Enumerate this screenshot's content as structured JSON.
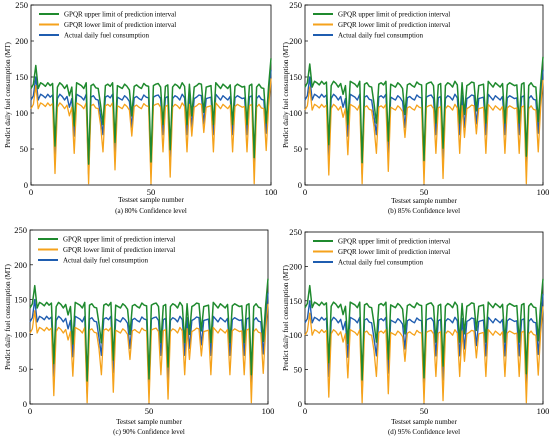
{
  "chart_data": [
    {
      "type": "line",
      "caption": "(a) 80% Confidence level",
      "xlabel": "Testset sample number",
      "ylabel": "Predict daily fuel consumption (MT)",
      "xlim": [
        0,
        100
      ],
      "ylim": [
        0,
        250
      ],
      "xticks": [
        "0",
        "50",
        "100"
      ],
      "yticks": [
        "0",
        "50",
        "100",
        "150",
        "200",
        "250"
      ],
      "legend_position": "top-left",
      "series": [
        {
          "name": "GPQR upper limit of prediction interval",
          "color": "#1f8a2e",
          "role": "upper"
        },
        {
          "name": "GPQR lower limit of prediction interval",
          "color": "#f5a21b",
          "role": "lower"
        },
        {
          "name": "Actual daily fuel consumption",
          "color": "#1f5db0",
          "role": "actual"
        }
      ],
      "upper_offset": 14,
      "lower_offset": 10
    },
    {
      "type": "line",
      "caption": "(b) 85% Confidence level",
      "xlabel": "Testset sample number",
      "ylabel": "Predict daily fuel consumption (MT)",
      "xlim": [
        0,
        100
      ],
      "ylim": [
        0,
        250
      ],
      "xticks": [
        "0",
        "50",
        "100"
      ],
      "yticks": [
        "0",
        "50",
        "100",
        "150",
        "200",
        "250"
      ],
      "legend_position": "top-left",
      "series": [
        {
          "name": "GPQR upper limit of prediction interval",
          "color": "#1f8a2e",
          "role": "upper"
        },
        {
          "name": "GPQR lower limit of prediction interval",
          "color": "#f5a21b",
          "role": "lower"
        },
        {
          "name": "Actual daily fuel consumption",
          "color": "#1f5db0",
          "role": "actual"
        }
      ],
      "upper_offset": 16,
      "lower_offset": 12
    },
    {
      "type": "line",
      "caption": "(c) 90% Confidence level",
      "xlabel": "Testset sample number",
      "ylabel": "Predict daily fuel consumption (MT)",
      "xlim": [
        0,
        100
      ],
      "ylim": [
        0,
        250
      ],
      "xticks": [
        "0",
        "50",
        "100"
      ],
      "yticks": [
        "0",
        "50",
        "100",
        "150",
        "200",
        "250"
      ],
      "legend_position": "top-left",
      "series": [
        {
          "name": "GPQR upper limit of prediction interval",
          "color": "#1f8a2e",
          "role": "upper"
        },
        {
          "name": "GPQR lower limit of prediction interval",
          "color": "#f5a21b",
          "role": "lower"
        },
        {
          "name": "Actual daily fuel consumption",
          "color": "#1f5db0",
          "role": "actual"
        }
      ],
      "upper_offset": 18,
      "lower_offset": 14
    },
    {
      "type": "line",
      "caption": "(d) 95% Confidence level",
      "xlabel": "Testset sample number",
      "ylabel": "Predict daily fuel consumption (MT)",
      "xlim": [
        0,
        100
      ],
      "ylim": [
        0,
        250
      ],
      "xticks": [
        "0",
        "50",
        "100"
      ],
      "yticks": [
        "0",
        "50",
        "100",
        "150",
        "200",
        "250"
      ],
      "legend_position": "top-left",
      "series": [
        {
          "name": "GPQR upper limit of prediction interval",
          "color": "#1f8a2e",
          "role": "upper"
        },
        {
          "name": "GPQR lower limit of prediction interval",
          "color": "#f5a21b",
          "role": "lower"
        },
        {
          "name": "Actual daily fuel consumption",
          "color": "#1f5db0",
          "role": "actual"
        }
      ],
      "upper_offset": 20,
      "lower_offset": 16
    }
  ],
  "actual_values": [
    118,
    124,
    150,
    118,
    126,
    124,
    121,
    126,
    122,
    125,
    40,
    120,
    126,
    123,
    118,
    123,
    108,
    120,
    68,
    126,
    124,
    122,
    118,
    126,
    15,
    122,
    124,
    119,
    118,
    95,
    70,
    122,
    124,
    121,
    126,
    45,
    122,
    120,
    118,
    124,
    121,
    116,
    80,
    121,
    123,
    120,
    118,
    125,
    122,
    121,
    18,
    122,
    124,
    125,
    120,
    70,
    121,
    123,
    35,
    120,
    124,
    122,
    118,
    126,
    121,
    70,
    124,
    80,
    120,
    122,
    125,
    124,
    85,
    120,
    121,
    122,
    70,
    126,
    122,
    118,
    124,
    121,
    118,
    123,
    70,
    121,
    124,
    122,
    120,
    121,
    70,
    122,
    124,
    24,
    120,
    124,
    119,
    118,
    72,
    121,
    160
  ]
}
